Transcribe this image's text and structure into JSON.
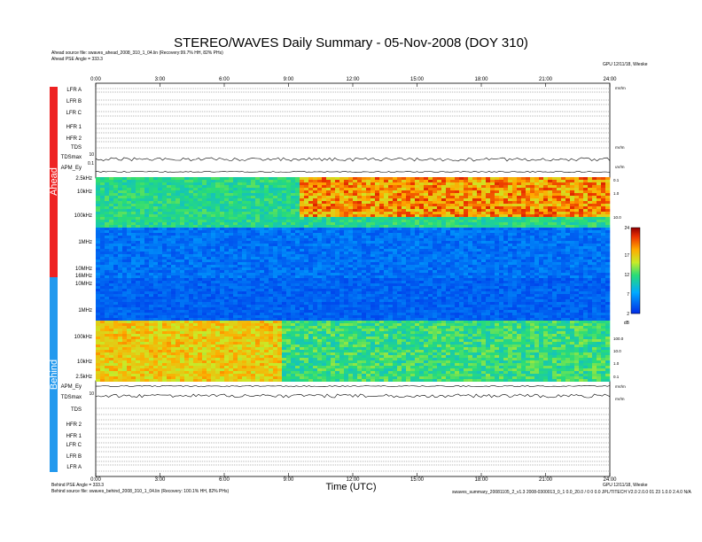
{
  "header": {
    "title": "STEREO/WAVES Daily Summary - 05-Nov-2008 (DOY 310)",
    "ahead_source": "Ahead source file: swaves_ahead_2008_310_1_04.lin (Recovery:99.7% HH, 82% PHs)",
    "ahead_angle": "Ahead PSE Angle = 333.3",
    "version": "GPU 12/11/18, Wieske"
  },
  "footer": {
    "behind_angle": "Behind PSE Angle = 333.3",
    "behind_source": "Behind source file: swaves_behind_2008_310_1_04.lin (Recovery: 100.1% HH, 82% PHs)",
    "version": "GPU 12/11/18, Wieske",
    "processing_note": "swaves_summary_20081105_2_v1.3 2008-0300013_0_1 0.0_20.0 / 0 0 0.0 JPL/TITECH V2.0 2.0.0 01 23 1.0.0 2.4.0 N/A"
  },
  "chart_data": {
    "type": "heatmap",
    "title": "STEREO/WAVES Daily Summary - 05-Nov-2008 (DOY 310)",
    "xlabel": "Time (UTC)",
    "x_ticks": [
      "0:00",
      "3:00",
      "6:00",
      "9:00",
      "12:00",
      "15:00",
      "18:00",
      "21:00",
      "24:00"
    ],
    "xlim": [
      0,
      24
    ],
    "groups": [
      "Ahead",
      "Behind"
    ],
    "ahead_rows": [
      "LFR A",
      "LFR B",
      "LFR C",
      "HFR 1",
      "HFR 2",
      "TDS",
      "TDSmax",
      "APM_Ey"
    ],
    "behind_rows": [
      "APM_Ey",
      "TDSmax",
      "TDS",
      "HFR 2",
      "HFR 1",
      "LFR C",
      "LFR B",
      "LFR A"
    ],
    "ahead_freq_ticks": [
      "2.5kHz",
      "10kHz",
      "100kHz",
      "1MHz",
      "10MHz",
      "16MHz"
    ],
    "behind_freq_ticks": [
      "16MHz",
      "10MHz",
      "1MHz",
      "100kHz",
      "10kHz",
      "2.5kHz"
    ],
    "right_freq_ticks": [
      "0.1",
      "1.0",
      "10.0",
      "100.0"
    ],
    "tdsmax_ticks": [
      "10",
      "0.1"
    ],
    "colorbar": {
      "label": "dB",
      "ticks": [
        24,
        17,
        12,
        7,
        2
      ],
      "range": [
        2,
        24
      ]
    },
    "side_labels": [
      "mV/m",
      "nV/m",
      "uV/m"
    ],
    "colors": {
      "ahead_bar": "#ee2222",
      "behind_bar": "#2299ee"
    }
  }
}
